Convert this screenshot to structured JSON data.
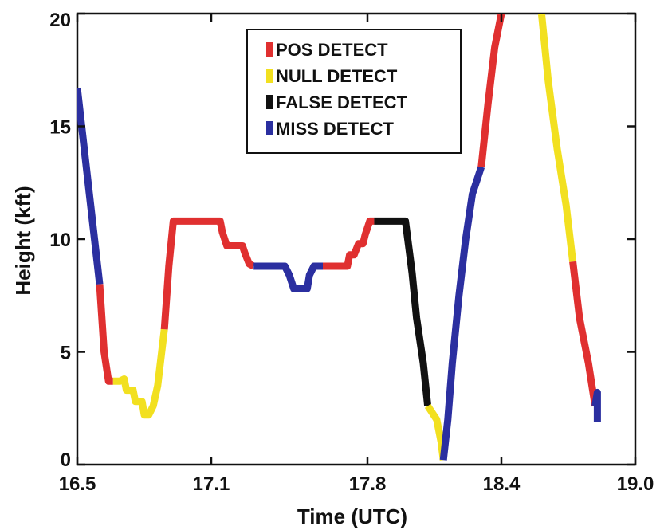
{
  "chart_data": {
    "type": "line",
    "title": "",
    "xlabel": "Time (UTC)",
    "ylabel": "Height (kft)",
    "xlim": [
      16.5,
      19.0
    ],
    "ylim": [
      0,
      20
    ],
    "xticks": [
      16.5,
      17.1,
      17.8,
      18.4,
      19.0
    ],
    "xtick_labels": [
      "16.5",
      "17.1",
      "17.8",
      "18.4",
      "19.0"
    ],
    "yticks": [
      0,
      5,
      10,
      15,
      20
    ],
    "ytick_labels": [
      "0",
      "5",
      "10",
      "15",
      "20"
    ],
    "grid": false,
    "legend_position": "top-center",
    "legend": [
      {
        "label": "POS DETECT",
        "color": "#e03030"
      },
      {
        "label": "NULL DETECT",
        "color": "#f2e020"
      },
      {
        "label": "FALSE DETECT",
        "color": "#111111"
      },
      {
        "label": "MISS DETECT",
        "color": "#2b2fa0"
      }
    ],
    "segments": [
      {
        "category": "MISS DETECT",
        "color": "#2b2fa0",
        "x": [
          16.5,
          16.6
        ],
        "y": [
          16.7,
          8.0
        ]
      },
      {
        "category": "POS DETECT",
        "color": "#e03030",
        "x": [
          16.6,
          16.62,
          16.64,
          16.66
        ],
        "y": [
          8.0,
          5.0,
          3.7,
          3.7
        ]
      },
      {
        "category": "NULL DETECT",
        "color": "#f2e020",
        "x": [
          16.66,
          16.69,
          16.71,
          16.72,
          16.75,
          16.76,
          16.79,
          16.8,
          16.82,
          16.84,
          16.86,
          16.89
        ],
        "y": [
          3.7,
          3.7,
          3.8,
          3.3,
          3.3,
          2.8,
          2.8,
          2.2,
          2.2,
          2.6,
          3.5,
          6.0
        ]
      },
      {
        "category": "POS DETECT",
        "color": "#e03030",
        "x": [
          16.89,
          16.91,
          16.93,
          17.14,
          17.15,
          17.17,
          17.2,
          17.24,
          17.25,
          17.27,
          17.29
        ],
        "y": [
          6.0,
          8.8,
          10.8,
          10.8,
          10.3,
          9.7,
          9.7,
          9.7,
          9.4,
          8.9,
          8.8
        ]
      },
      {
        "category": "MISS DETECT",
        "color": "#2b2fa0",
        "x": [
          17.29,
          17.43,
          17.45,
          17.47,
          17.53,
          17.54,
          17.56,
          17.6
        ],
        "y": [
          8.8,
          8.8,
          8.4,
          7.8,
          7.8,
          8.4,
          8.8,
          8.8
        ]
      },
      {
        "category": "POS DETECT",
        "color": "#e03030",
        "x": [
          17.6,
          17.71,
          17.72,
          17.74,
          17.76,
          17.78,
          17.79,
          17.81,
          17.83
        ],
        "y": [
          8.8,
          8.8,
          9.3,
          9.3,
          9.8,
          9.8,
          10.2,
          10.8,
          10.8
        ]
      },
      {
        "category": "FALSE DETECT",
        "color": "#111111",
        "x": [
          17.83,
          17.97,
          18.0,
          18.02,
          18.05,
          18.07
        ],
        "y": [
          10.8,
          10.8,
          8.5,
          6.5,
          4.5,
          2.6
        ]
      },
      {
        "category": "NULL DETECT",
        "color": "#f2e020",
        "x": [
          18.07,
          18.11,
          18.13,
          18.14
        ],
        "y": [
          2.6,
          2.0,
          1.0,
          0.2
        ]
      },
      {
        "category": "MISS DETECT",
        "color": "#2b2fa0",
        "x": [
          18.14,
          18.16,
          18.18,
          18.21,
          18.24,
          18.27,
          18.31
        ],
        "y": [
          0.2,
          2.0,
          4.5,
          7.5,
          10.0,
          12.0,
          13.2
        ]
      },
      {
        "category": "POS DETECT",
        "color": "#e03030",
        "x": [
          18.31,
          18.34,
          18.37,
          18.4
        ],
        "y": [
          13.2,
          16.0,
          18.5,
          20.0
        ]
      },
      {
        "category": "NULL DETECT",
        "color": "#f2e020",
        "x": [
          18.58,
          18.61,
          18.65,
          18.69,
          18.72
        ],
        "y": [
          20.0,
          17.0,
          14.0,
          11.5,
          9.0
        ]
      },
      {
        "category": "POS DETECT",
        "color": "#e03030",
        "x": [
          18.72,
          18.75,
          18.79,
          18.82
        ],
        "y": [
          9.0,
          6.5,
          4.5,
          2.6
        ]
      },
      {
        "category": "MISS DETECT",
        "color": "#2b2fa0",
        "x": [
          18.82,
          18.83,
          18.83
        ],
        "y": [
          2.6,
          3.2,
          1.9
        ]
      }
    ]
  }
}
